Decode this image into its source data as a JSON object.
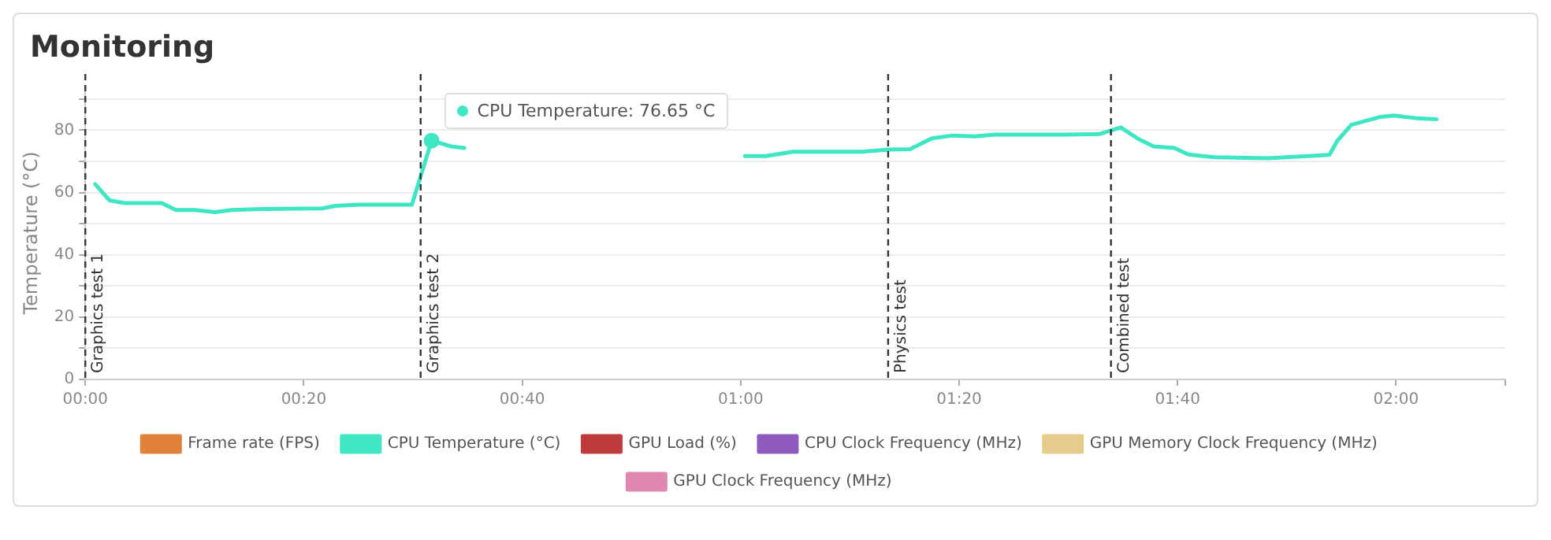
{
  "chart_data": {
    "type": "line",
    "title": "Monitoring",
    "ylabel": "Temperature (°C)",
    "xlim": [
      0,
      130
    ],
    "xticks": [
      {
        "value": 0,
        "label": "00:00"
      },
      {
        "value": 20,
        "label": "00:20"
      },
      {
        "value": 40,
        "label": "00:40"
      },
      {
        "value": 60,
        "label": "01:00"
      },
      {
        "value": 80,
        "label": "01:20"
      },
      {
        "value": 100,
        "label": "01:40"
      },
      {
        "value": 120,
        "label": "02:00"
      },
      {
        "value": 130,
        "label": null
      }
    ],
    "ylim": [
      0,
      94
    ],
    "yticks": [
      0,
      {
        "value": 10,
        "label": null
      },
      20,
      {
        "value": 30,
        "label": null
      },
      40,
      {
        "value": 50,
        "label": null
      },
      60,
      {
        "value": 70,
        "label": null
      },
      80,
      {
        "value": 90,
        "label": null
      }
    ],
    "grid": "y",
    "legend": "bottom",
    "marker": "none",
    "line_style": "solid",
    "series": [
      {
        "name": "Frame rate (FPS)",
        "color": "#e0823a"
      },
      {
        "name": "CPU Temperature (°C)",
        "color": "#3fe6c4",
        "x": [
          0.9,
          2.2,
          3.6,
          7.0,
          8.3,
          10.0,
          11.9,
          13.4,
          16.3,
          21.7,
          22.9,
          25.1,
          29.9,
          31.7,
          33.5,
          34.7,
          36,
          60.4,
          62.3,
          64.8,
          71.1,
          73.6,
          75.5,
          77.5,
          79.4,
          81.4,
          83.3,
          87.7,
          89.7,
          92.9,
          94.8,
          96.3,
          97.8,
          99.7,
          101,
          103.4,
          108.3,
          113.9,
          114.6,
          115.9,
          116.8,
          118.6,
          119.8,
          122,
          123.7
        ],
        "values": [
          62.7,
          57.5,
          56.6,
          56.6,
          54.4,
          54.4,
          53.7,
          54.4,
          54.7,
          54.9,
          55.7,
          56.1,
          56.1,
          76.65,
          74.8,
          74.3,
          null,
          71.7,
          71.7,
          73.1,
          73.1,
          73.8,
          73.9,
          77.4,
          78.3,
          78,
          78.6,
          78.6,
          78.6,
          78.8,
          80.9,
          77.4,
          74.8,
          74.3,
          72.2,
          71.3,
          71,
          72.1,
          76.5,
          81.7,
          82.6,
          84.3,
          84.7,
          83.8,
          83.5
        ]
      },
      {
        "name": "GPU Load (%)",
        "color": "#bf3a3a"
      },
      {
        "name": "CPU Clock Frequency (MHz)",
        "color": "#8e5cbf"
      },
      {
        "name": "GPU Memory Clock Frequency (MHz)",
        "color": "#e6cc8a"
      },
      {
        "name": "GPU Clock Frequency (MHz)",
        "color": "#e088b0"
      }
    ],
    "ref_lines": [
      {
        "axis": "x",
        "value": 0,
        "label": "Graphics test 1",
        "color": "#333333",
        "line_style": "dashed"
      },
      {
        "axis": "x",
        "value": 30.7,
        "label": "Graphics test 2",
        "color": "#333333",
        "line_style": "dashed"
      },
      {
        "axis": "x",
        "value": 73.5,
        "label": "Physics test",
        "color": "#333333",
        "line_style": "dashed"
      },
      {
        "axis": "x",
        "value": 93.9,
        "label": "Combined test",
        "color": "#333333",
        "line_style": "dashed"
      }
    ],
    "annotations": [
      {
        "text": "CPU Temperature: 76.65 °C",
        "x": 31.7,
        "y": 76.65
      }
    ]
  }
}
